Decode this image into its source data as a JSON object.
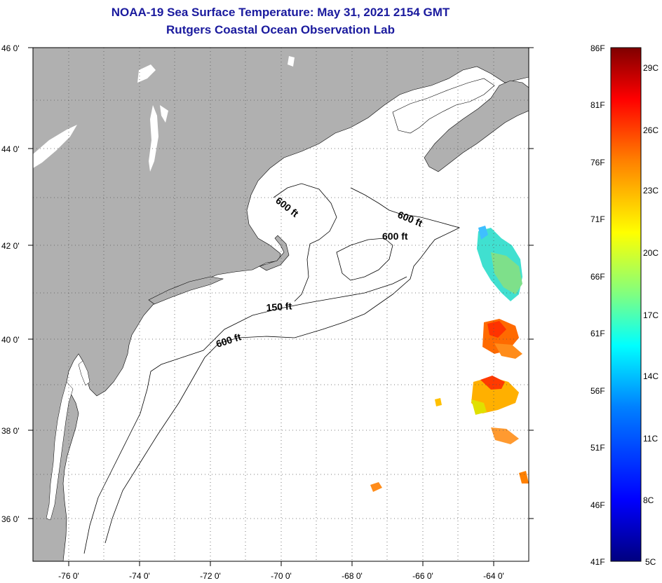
{
  "header": {
    "title": "NOAA-19 Sea Surface Temperature:  May 31, 2021 2154 GMT",
    "subtitle": "Rutgers Coastal Ocean Observation Lab"
  },
  "map": {
    "lat_labels": [
      "46 0'",
      "44 0'",
      "42 0'",
      "40 0'",
      "38 0'",
      "36 0'"
    ],
    "lon_labels": [
      "-76 0'",
      "-74 0'",
      "-72 0'",
      "-70 0'",
      "-68 0'",
      "-66 0'",
      "-64 0'"
    ],
    "contour_labels": [
      "600 ft",
      "600 ft",
      "600 ft",
      "150 ft",
      "600 ft"
    ],
    "land_color": "#b0b0b0",
    "water_color": "#ffffff"
  },
  "colorbar": {
    "f_labels": [
      "86F",
      "81F",
      "76F",
      "71F",
      "66F",
      "61F",
      "56F",
      "51F",
      "46F",
      "41F"
    ],
    "c_labels": [
      "29C",
      "26C",
      "23C",
      "20C",
      "17C",
      "14C",
      "11C",
      "8C",
      "5C"
    ],
    "colors": [
      "#00007f",
      "#0000ff",
      "#0080ff",
      "#00ffff",
      "#80ff80",
      "#ffff00",
      "#ff8000",
      "#ff0000",
      "#7f0000"
    ]
  }
}
